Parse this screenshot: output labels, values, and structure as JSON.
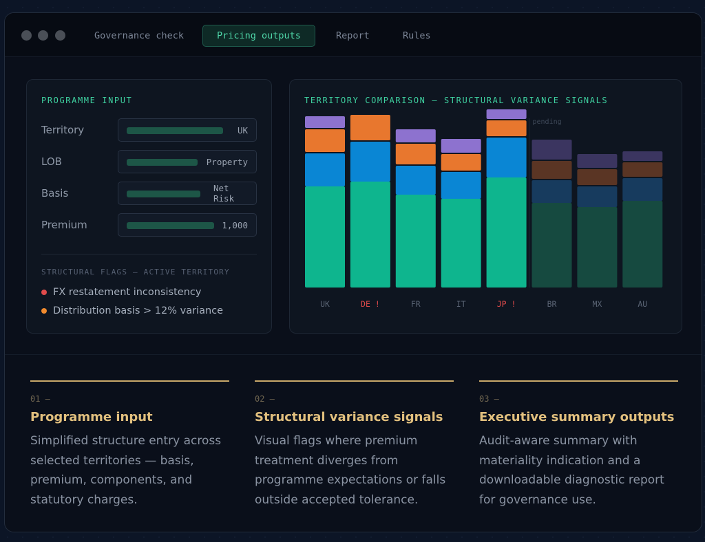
{
  "window": {
    "tabs": [
      {
        "label": "Governance check",
        "active": false
      },
      {
        "label": "Pricing outputs",
        "active": true
      },
      {
        "label": "Report",
        "active": false
      },
      {
        "label": "Rules",
        "active": false
      }
    ]
  },
  "programme": {
    "heading": "PROGRAMME INPUT",
    "fields": [
      {
        "label": "Territory",
        "value": "UK"
      },
      {
        "label": "LOB",
        "value": "Property"
      },
      {
        "label": "Basis",
        "value": "Net Risk"
      },
      {
        "label": "Premium",
        "value": "1,000"
      }
    ],
    "flags_heading": "STRUCTURAL FLAGS — ACTIVE TERRITORY",
    "flags": [
      {
        "text": "FX restatement inconsistency",
        "color": "#e04b4b"
      },
      {
        "text": "Distribution basis > 12% variance",
        "color": "#f08a2e"
      }
    ]
  },
  "chart": {
    "heading": "TERRITORY COMPARISON — STRUCTURAL VARIANCE SIGNALS",
    "pending_label": "pending",
    "colors": {
      "active": [
        "#0eb58e",
        "#0a86d4",
        "#e8772e",
        "#8d72cf"
      ],
      "pending": [
        "#164a40",
        "#173b5e",
        "#5a3524",
        "#3b3560"
      ],
      "label_normal": "#5a6474",
      "label_flagged": "#e04b4b"
    }
  },
  "chart_data": {
    "type": "bar",
    "stacked": true,
    "categories": [
      "UK",
      "DE !",
      "FR",
      "IT",
      "JP !",
      "BR",
      "MX",
      "AU"
    ],
    "flagged": [
      false,
      true,
      false,
      false,
      true,
      false,
      false,
      false
    ],
    "pending": [
      false,
      false,
      false,
      false,
      false,
      true,
      true,
      true
    ],
    "series": [
      {
        "values": [
          147,
          154,
          135,
          129,
          160,
          123,
          117,
          126
        ]
      },
      {
        "values": [
          50,
          60,
          44,
          41,
          60,
          35,
          32,
          35
        ]
      },
      {
        "values": [
          35,
          39,
          32,
          26,
          25,
          28,
          25,
          23
        ]
      },
      {
        "values": [
          19,
          0,
          21,
          22,
          16,
          31,
          22,
          16
        ]
      }
    ],
    "ylim": [
      0,
      260
    ],
    "grid": false,
    "legend": "none"
  },
  "features": [
    {
      "num": "01 —",
      "title": "Programme input",
      "desc": "Simplified structure entry across selected territories — basis, premium, components, and statutory charges."
    },
    {
      "num": "02 —",
      "title": "Structural variance signals",
      "desc": "Visual flags where premium treatment diverges from programme expectations or falls outside accepted tolerance."
    },
    {
      "num": "03 —",
      "title": "Executive summary outputs",
      "desc": "Audit-aware summary with materiality indication and a downloadable diagnostic report for governance use."
    }
  ]
}
